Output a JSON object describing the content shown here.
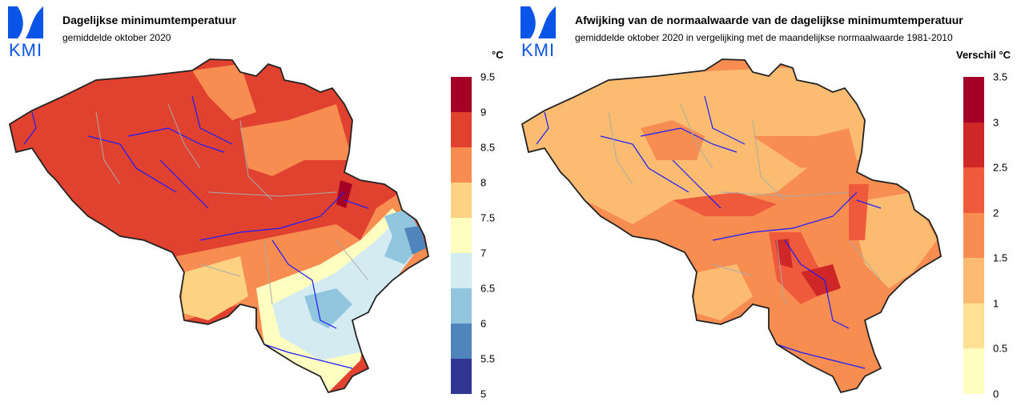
{
  "logo": {
    "text": "KMI",
    "color": "#0a55e8"
  },
  "left": {
    "title": "Dagelijkse minimumtemperatuur",
    "subtitle": "gemiddelde oktober 2020",
    "unit": "°C",
    "legend": {
      "ticks": [
        "9.5",
        "9",
        "8.5",
        "8",
        "7.5",
        "7",
        "6.5",
        "6",
        "5.5",
        "5"
      ],
      "colors": [
        "#a50026",
        "#e0422f",
        "#f88d52",
        "#fdd383",
        "#fefec0",
        "#d3ebf1",
        "#92c5de",
        "#4f85bb",
        "#313695"
      ]
    }
  },
  "right": {
    "title": "Afwijking van de normaalwaarde van de dagelijkse minimumtemperatuur",
    "subtitle": "gemiddelde oktober 2020 in vergelijking met de maandelijkse normaalwaarde 1981-2010",
    "unit": "Verschil °C",
    "legend": {
      "ticks": [
        "3.5",
        "3",
        "2.5",
        "2",
        "1.5",
        "1",
        "0.5",
        "0"
      ],
      "colors": [
        "#a50026",
        "#cf2727",
        "#ee5a3b",
        "#f88d52",
        "#fbbc72",
        "#fee193",
        "#fefec0"
      ]
    }
  }
}
